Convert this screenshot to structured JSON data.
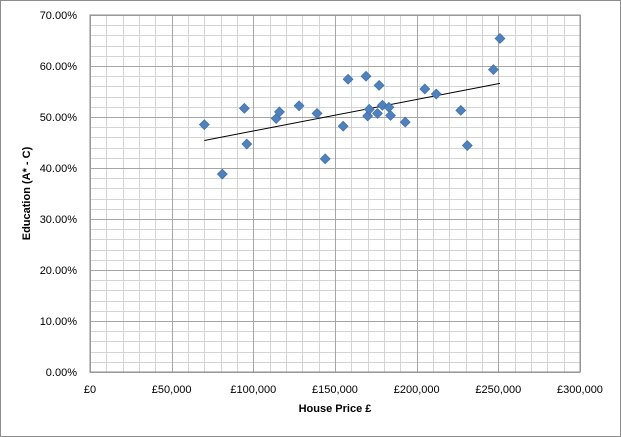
{
  "chart_data": {
    "type": "scatter",
    "xlabel": "House Price £",
    "ylabel": "Education (A* - C)",
    "xlim": [
      0,
      300000
    ],
    "ylim": [
      0,
      0.7
    ],
    "x_ticks": [
      0,
      50000,
      100000,
      150000,
      200000,
      250000,
      300000
    ],
    "x_tick_labels": [
      "£0",
      "£50,000",
      "£100,000",
      "£150,000",
      "£200,000",
      "£250,000",
      "£300,000"
    ],
    "y_ticks": [
      0,
      0.1,
      0.2,
      0.3,
      0.4,
      0.5,
      0.6,
      0.7
    ],
    "y_tick_labels": [
      "0.00%",
      "10.00%",
      "20.00%",
      "30.00%",
      "40.00%",
      "50.00%",
      "60.00%",
      "70.00%"
    ],
    "grid": true,
    "minor_grid_x_step": 10000,
    "minor_grid_y_step": 0.02,
    "marker": "diamond",
    "colors": {
      "points": "#4F81BD",
      "point_edge": "#3A6AA8",
      "trendline": "#000000",
      "grid": "#a6a6a6",
      "minor_grid": "#d4d4d4"
    },
    "points": [
      {
        "x": 70000,
        "y": 0.485
      },
      {
        "x": 81000,
        "y": 0.388
      },
      {
        "x": 94500,
        "y": 0.517
      },
      {
        "x": 96000,
        "y": 0.447
      },
      {
        "x": 114000,
        "y": 0.497
      },
      {
        "x": 116000,
        "y": 0.51
      },
      {
        "x": 128000,
        "y": 0.522
      },
      {
        "x": 139000,
        "y": 0.507
      },
      {
        "x": 144000,
        "y": 0.418
      },
      {
        "x": 155000,
        "y": 0.482
      },
      {
        "x": 158000,
        "y": 0.574
      },
      {
        "x": 169000,
        "y": 0.58
      },
      {
        "x": 170000,
        "y": 0.502
      },
      {
        "x": 171000,
        "y": 0.515
      },
      {
        "x": 176000,
        "y": 0.507
      },
      {
        "x": 177000,
        "y": 0.562
      },
      {
        "x": 179000,
        "y": 0.523
      },
      {
        "x": 183000,
        "y": 0.519
      },
      {
        "x": 184000,
        "y": 0.503
      },
      {
        "x": 193000,
        "y": 0.49
      },
      {
        "x": 205000,
        "y": 0.555
      },
      {
        "x": 212000,
        "y": 0.545
      },
      {
        "x": 227000,
        "y": 0.513
      },
      {
        "x": 231000,
        "y": 0.444
      },
      {
        "x": 247000,
        "y": 0.593
      },
      {
        "x": 251000,
        "y": 0.654
      }
    ],
    "trendline": {
      "x": [
        70000,
        251000
      ],
      "y": [
        0.454,
        0.566
      ]
    }
  }
}
